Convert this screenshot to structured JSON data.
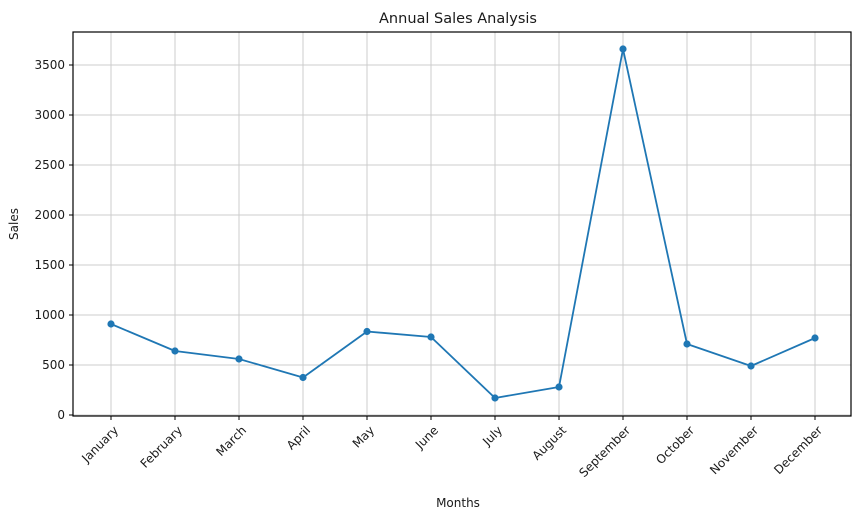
{
  "chart_data": {
    "type": "line",
    "title": "Annual Sales Analysis",
    "xlabel": "Months",
    "ylabel": "Sales",
    "categories": [
      "January",
      "February",
      "March",
      "April",
      "May",
      "June",
      "July",
      "August",
      "September",
      "October",
      "November",
      "December"
    ],
    "values": [
      910,
      640,
      560,
      375,
      835,
      780,
      170,
      280,
      3660,
      710,
      490,
      770
    ],
    "series": [
      {
        "name": "Sales",
        "values": [
          910,
          640,
          560,
          375,
          835,
          780,
          170,
          280,
          3660,
          710,
          490,
          770
        ]
      }
    ],
    "ylim": [
      -10,
      3830
    ],
    "y_ticks": [
      0,
      500,
      1000,
      1500,
      2000,
      2500,
      3000,
      3500
    ],
    "grid": true,
    "legend": "none",
    "marker": "circle",
    "colors": {
      "line": "#1f77b4",
      "marker": "#1f77b4",
      "grid": "#cccccc",
      "spine": "#000000",
      "text": "#1a1a1a"
    }
  }
}
